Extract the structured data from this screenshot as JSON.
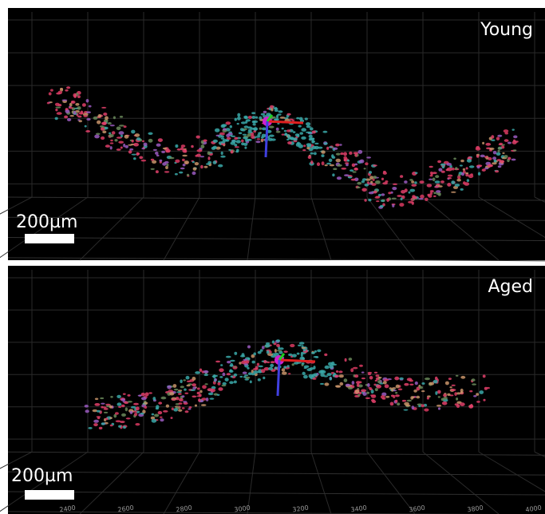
{
  "panels": [
    {
      "label": "Young",
      "scale_bar": "200µm"
    },
    {
      "label": "Aged",
      "scale_bar": "200µm",
      "axis_labels": [
        "2400",
        "2600",
        "2800",
        "3000",
        "3200",
        "3400",
        "3600",
        "3800",
        "4000"
      ]
    }
  ]
}
